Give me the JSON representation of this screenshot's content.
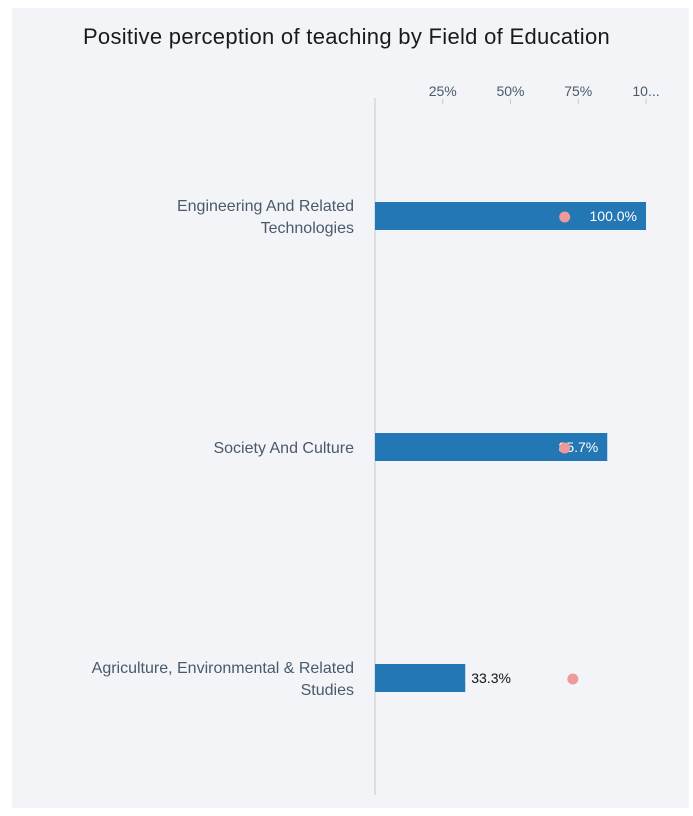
{
  "chart_data": {
    "type": "bar",
    "orientation": "horizontal",
    "title": "Positive perception of teaching by Field of Education",
    "xlim": [
      0,
      100
    ],
    "ticks": [
      "25%",
      "50%",
      "75%",
      "10..."
    ],
    "tick_values": [
      25,
      50,
      75,
      100
    ],
    "categories": [
      [
        "Engineering And Related",
        "Technologies"
      ],
      [
        "Society And Culture"
      ],
      [
        "Agriculture, Environmental & Related",
        "Studies"
      ]
    ],
    "values": [
      100.0,
      85.7,
      33.3
    ],
    "value_labels": [
      "100.0%",
      "85.7%",
      "33.3%"
    ],
    "benchmark_markers": [
      70,
      70,
      73
    ],
    "colors": {
      "bar": "#2277b4",
      "marker": "#f0999a",
      "axis": "#c8c8c8"
    }
  }
}
